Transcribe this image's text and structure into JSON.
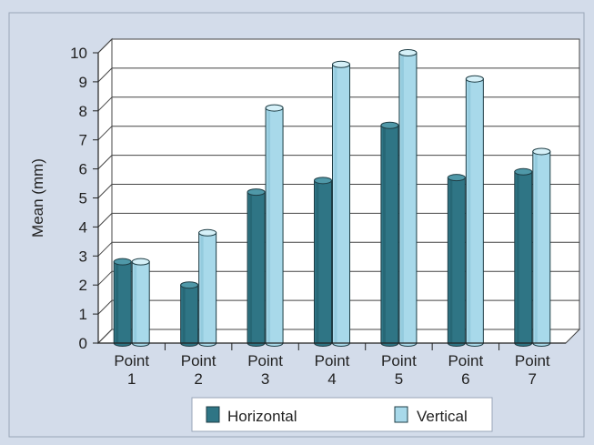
{
  "chart_data": {
    "type": "bar",
    "title": "",
    "xlabel": "",
    "ylabel": "Mean (mm)",
    "ylim": [
      0,
      10
    ],
    "yticks": [
      "0",
      "1",
      "2",
      "3",
      "4",
      "5",
      "6",
      "7",
      "8",
      "9",
      "10"
    ],
    "categories": [
      {
        "line1": "Point",
        "line2": "1"
      },
      {
        "line1": "Point",
        "line2": "2"
      },
      {
        "line1": "Point",
        "line2": "3"
      },
      {
        "line1": "Point",
        "line2": "4"
      },
      {
        "line1": "Point",
        "line2": "5"
      },
      {
        "line1": "Point",
        "line2": "6"
      },
      {
        "line1": "Point",
        "line2": "7"
      }
    ],
    "series": [
      {
        "name": "Horizontal",
        "color": "#2f7585",
        "values": [
          2.8,
          2.0,
          5.2,
          5.6,
          7.5,
          5.7,
          5.9
        ]
      },
      {
        "name": "Vertical",
        "color": "#a8d9ea",
        "values": [
          2.8,
          3.8,
          8.1,
          9.6,
          10.0,
          9.1,
          6.6
        ]
      }
    ],
    "grid": true,
    "legend_position": "bottom"
  }
}
